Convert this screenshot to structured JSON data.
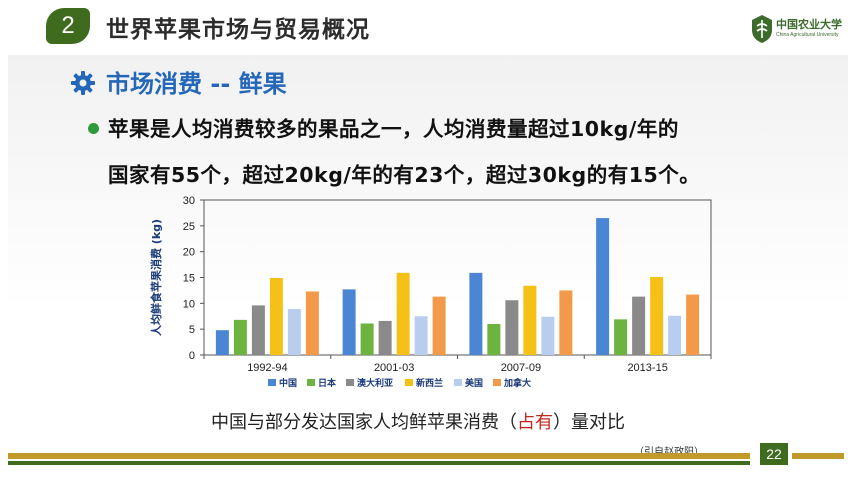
{
  "header": {
    "number": "2",
    "title": "世界苹果市场与贸易概况",
    "logo_cn": "中国农业大学",
    "logo_en": "China Agricultural University"
  },
  "subtitle": "市场消费 -- 鲜果",
  "bullet": {
    "line1": "苹果是人均消费较多的果品之一，人均消费量超过10kg/年的",
    "line2": "国家有55个，超过20kg/年的有23个，超过30kg的有15个。"
  },
  "caption": {
    "before": "中国与部分发达国家人均鲜苹果消费（",
    "highlight": "占有",
    "after": "）量对比"
  },
  "source": "（引自赵政阳）",
  "page_number": "22",
  "chart_data": {
    "type": "bar",
    "categories": [
      "1992-94",
      "2001-03",
      "2007-09",
      "2013-15"
    ],
    "ylabel": "人均鲜食苹果消费 (kg)",
    "ylim": [
      0,
      30
    ],
    "yticks": [
      "0",
      "5",
      "10",
      "15",
      "20",
      "25",
      "30"
    ],
    "grid": false,
    "legend_position": "bottom",
    "series": [
      {
        "name": "中国",
        "color": "#4a86d4",
        "values": [
          4.8,
          12.7,
          15.9,
          26.5
        ]
      },
      {
        "name": "日本",
        "color": "#6db33f",
        "values": [
          6.8,
          6.1,
          6.0,
          6.9
        ]
      },
      {
        "name": "澳大利亚",
        "color": "#8a8a8a",
        "values": [
          9.6,
          6.6,
          10.6,
          11.3
        ]
      },
      {
        "name": "新西兰",
        "color": "#f5c116",
        "values": [
          14.9,
          15.9,
          13.4,
          15.1
        ]
      },
      {
        "name": "美国",
        "color": "#b9cdef",
        "values": [
          8.9,
          7.5,
          7.4,
          7.6
        ]
      },
      {
        "name": "加拿大",
        "color": "#f39a4a",
        "values": [
          12.3,
          11.3,
          12.5,
          11.7
        ]
      }
    ]
  }
}
